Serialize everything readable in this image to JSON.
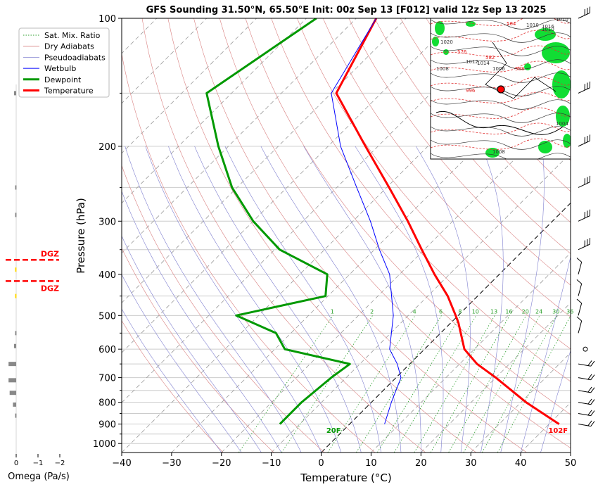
{
  "chart_data": {
    "type": "line",
    "title": "GFS Sounding 31.50°N, 65.50°E Init: 00z Sep 13 [F012] valid 12z Sep 13 2025",
    "xlabel": "Temperature (°C)",
    "ylabel": "Pressure (hPa)",
    "xlim": [
      -40,
      50
    ],
    "ylim": [
      1050,
      100
    ],
    "y_scale": "log",
    "x_ticks": [
      "−40",
      "−30",
      "−20",
      "−10",
      "0",
      "10",
      "20",
      "30",
      "40",
      "50"
    ],
    "y_ticks": [
      "100",
      "200",
      "300",
      "400",
      "500",
      "600",
      "700",
      "800",
      "900",
      "1000"
    ],
    "y_tick_values": [
      100,
      200,
      300,
      400,
      500,
      600,
      700,
      800,
      900,
      1000
    ],
    "skew": "temperature axis skewed 45° (skew-T log-P)",
    "grid": true,
    "legend": {
      "placement": "top-left",
      "entries": [
        {
          "label": "Sat. Mix. Ratio",
          "color": "#2ca02c",
          "style": "dotted"
        },
        {
          "label": "Dry Adiabats",
          "color": "#d62728",
          "style": "thin"
        },
        {
          "label": "Pseudoadiabats",
          "color": "#1f1fd0",
          "style": "thin"
        },
        {
          "label": "Wetbulb",
          "color": "#0000ff",
          "style": "solid"
        },
        {
          "label": "Dewpoint",
          "color": "#009900",
          "style": "thick"
        },
        {
          "label": "Temperature",
          "color": "#ff0000",
          "style": "thick"
        }
      ]
    },
    "series": [
      {
        "name": "Temperature",
        "color": "#ff0000",
        "points": [
          {
            "p": 900,
            "t": 42
          },
          {
            "p": 800,
            "t": 31
          },
          {
            "p": 700,
            "t": 20
          },
          {
            "p": 650,
            "t": 13.5
          },
          {
            "p": 600,
            "t": 8
          },
          {
            "p": 520,
            "t": 1.5
          },
          {
            "p": 500,
            "t": -0.5
          },
          {
            "p": 450,
            "t": -6
          },
          {
            "p": 400,
            "t": -13
          },
          {
            "p": 350,
            "t": -20.5
          },
          {
            "p": 300,
            "t": -29
          },
          {
            "p": 250,
            "t": -39.5
          },
          {
            "p": 200,
            "t": -52.5
          },
          {
            "p": 150,
            "t": -69
          },
          {
            "p": 100,
            "t": -76
          }
        ]
      },
      {
        "name": "Dewpoint",
        "color": "#009900",
        "points": [
          {
            "p": 900,
            "t": -14
          },
          {
            "p": 800,
            "t": -14
          },
          {
            "p": 700,
            "t": -13
          },
          {
            "p": 650,
            "t": -12
          },
          {
            "p": 600,
            "t": -28
          },
          {
            "p": 550,
            "t": -33
          },
          {
            "p": 500,
            "t": -44.5
          },
          {
            "p": 450,
            "t": -30.5
          },
          {
            "p": 400,
            "t": -34.5
          },
          {
            "p": 350,
            "t": -49
          },
          {
            "p": 300,
            "t": -60
          },
          {
            "p": 250,
            "t": -71
          },
          {
            "p": 200,
            "t": -82
          },
          {
            "p": 150,
            "t": -95
          },
          {
            "p": 100,
            "t": -88
          }
        ]
      },
      {
        "name": "Wetbulb",
        "color": "#0000ff",
        "points": [
          {
            "p": 900,
            "t": 7
          },
          {
            "p": 800,
            "t": 4
          },
          {
            "p": 700,
            "t": 1
          },
          {
            "p": 650,
            "t": -2.5
          },
          {
            "p": 600,
            "t": -7
          },
          {
            "p": 500,
            "t": -13
          },
          {
            "p": 400,
            "t": -22
          },
          {
            "p": 350,
            "t": -29
          },
          {
            "p": 300,
            "t": -36.5
          },
          {
            "p": 250,
            "t": -46
          },
          {
            "p": 200,
            "t": -57.5
          },
          {
            "p": 150,
            "t": -70
          },
          {
            "p": 100,
            "t": -76
          }
        ]
      }
    ],
    "mixing_ratio_labels": [
      "1",
      "2",
      "4",
      "6",
      "8",
      "10",
      "13",
      "16",
      "20",
      "24",
      "30",
      "36"
    ],
    "mixing_ratio_values": [
      1,
      2,
      4,
      6,
      8,
      10,
      13,
      16,
      20,
      24,
      30,
      36
    ],
    "surface_labels": [
      {
        "text": "20F",
        "color": "#009900",
        "p": 930,
        "t": -2
      },
      {
        "text": "102F",
        "color": "#ff0000",
        "p": 930,
        "t": 43
      }
    ],
    "omega": {
      "xlabel": "Omega (Pa/s)",
      "ticks": [
        "0",
        "−1",
        "−2"
      ],
      "tick_values": [
        0,
        -1,
        -2
      ],
      "dgz_label": "DGZ",
      "dgz_bounds_hpa": [
        370,
        415
      ],
      "bars": [
        {
          "p": 150,
          "w": 0.1
        },
        {
          "p": 250,
          "w": 0.05
        },
        {
          "p": 290,
          "w": 0.05
        },
        {
          "p": 390,
          "w": 0.05,
          "color": "#ffd700"
        },
        {
          "p": 450,
          "w": 0.05,
          "color": "#ffd700"
        },
        {
          "p": 550,
          "w": 0.05
        },
        {
          "p": 590,
          "w": 0.1
        },
        {
          "p": 650,
          "w": 0.35
        },
        {
          "p": 710,
          "w": 0.35
        },
        {
          "p": 760,
          "w": 0.3
        },
        {
          "p": 810,
          "w": 0.15
        },
        {
          "p": 860,
          "w": 0.05
        }
      ]
    },
    "inset_map": {
      "labels": [
        "564",
        "1010",
        "1010",
        "1012",
        "1014",
        "1006",
        "1004",
        "1008",
        "1010",
        "1020",
        "1016",
        "576",
        "582",
        "588",
        "1008",
        "996"
      ],
      "marker_label": ""
    },
    "colors": {
      "temperature": "#ff0000",
      "dewpoint": "#009900",
      "wetbulb": "#0000ff",
      "dry_adiabat": "#d98080",
      "pseudoadiabat": "#8080d0",
      "mixing_ratio": "#2ca02c",
      "isotherm": "#999999",
      "grid": "#cccccc"
    }
  }
}
